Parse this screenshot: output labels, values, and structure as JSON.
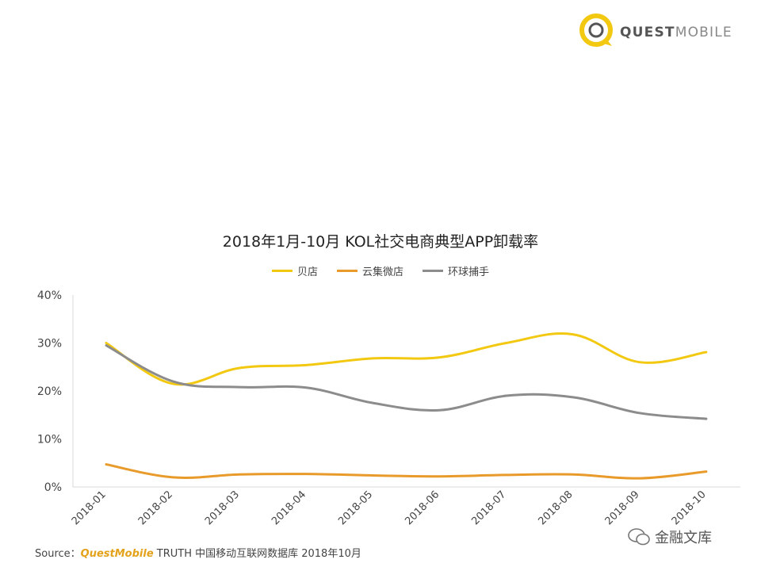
{
  "header": {
    "logo_bold": "QUEST",
    "logo_light": "MOBILE"
  },
  "chart_data": {
    "type": "line",
    "title": "2018年1月-10月 KOL社交电商典型APP卸载率",
    "categories": [
      "2018-01",
      "2018-02",
      "2018-03",
      "2018-04",
      "2018-05",
      "2018-06",
      "2018-07",
      "2018-08",
      "2018-09",
      "2018-10"
    ],
    "y_ticks": [
      "40%",
      "30%",
      "20%",
      "10%",
      "0%"
    ],
    "ylim": [
      0,
      40
    ],
    "grid": false,
    "legend_position": "top",
    "series": [
      {
        "name": "贝店",
        "color": "#f2c811",
        "values": [
          30.0,
          21.5,
          24.8,
          25.4,
          26.8,
          27.0,
          30.0,
          31.8,
          26.0,
          28.1
        ]
      },
      {
        "name": "云集微店",
        "color": "#e89a2a",
        "values": [
          4.7,
          2.0,
          2.6,
          2.7,
          2.4,
          2.2,
          2.5,
          2.6,
          1.8,
          3.2
        ]
      },
      {
        "name": "环球捕手",
        "color": "#8c8c8c",
        "values": [
          29.5,
          22.0,
          20.8,
          20.7,
          17.5,
          16.0,
          19.0,
          18.7,
          15.4,
          14.2
        ]
      }
    ]
  },
  "footer": {
    "source_prefix": "Source：",
    "source_brand": "QuestMobile",
    "source_rest": " TRUTH 中国移动互联网数据库 2018年10月",
    "watermark": "金融文库"
  }
}
